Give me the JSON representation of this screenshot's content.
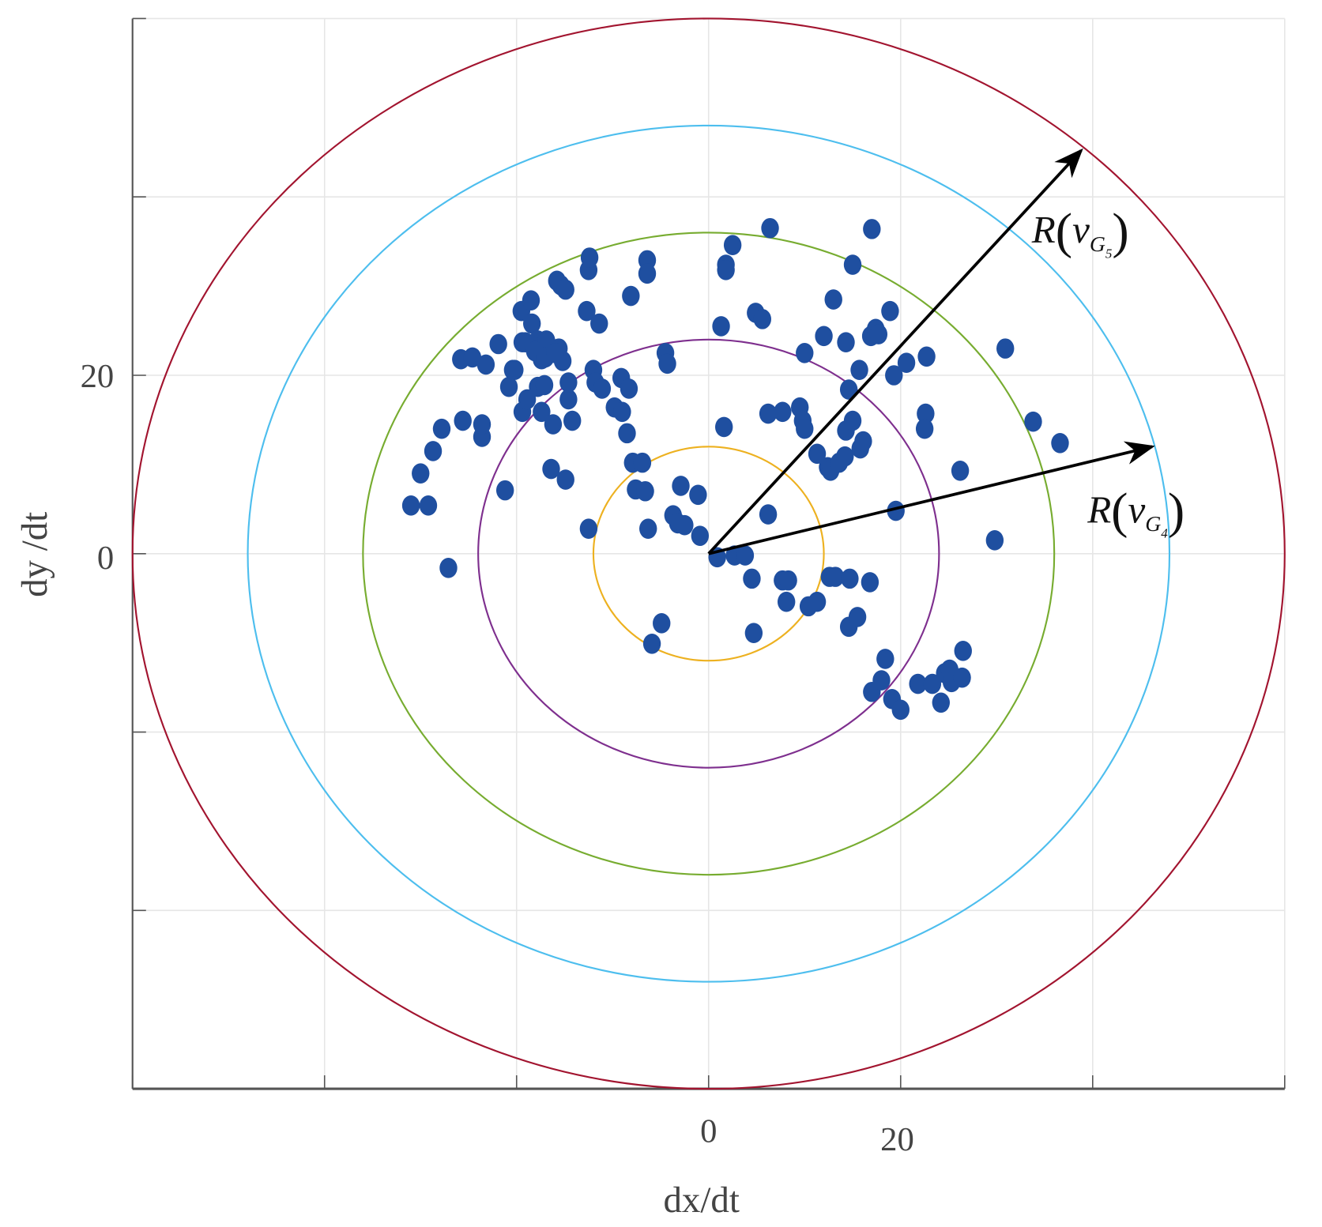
{
  "chart_data": {
    "type": "scatter",
    "title": "",
    "xlabel": "dx/dt",
    "ylabel": "dy /dt",
    "xlim": [
      -60,
      60
    ],
    "ylim": [
      -60,
      60
    ],
    "grid": true,
    "x_gridlines": [
      -60,
      -40,
      -20,
      0,
      20,
      40,
      60
    ],
    "y_gridlines": [
      -60,
      -40,
      -20,
      0,
      20,
      40,
      60
    ],
    "x_tick_labels": [
      {
        "value": 0,
        "label": "0"
      },
      {
        "value": 20,
        "label": "20"
      }
    ],
    "y_tick_labels": [
      {
        "value": 20,
        "label": "20"
      },
      {
        "value": 0,
        "label": "0"
      }
    ],
    "point_color": "#1f4fa0",
    "circles": [
      {
        "radius": 12,
        "color": "#edb120"
      },
      {
        "radius": 24,
        "color": "#7e2f8e"
      },
      {
        "radius": 36,
        "color": "#77ac30"
      },
      {
        "radius": 48,
        "color": "#4dbeee"
      },
      {
        "radius": 60,
        "color": "#a2142f"
      }
    ],
    "annotations": [
      {
        "tip": [
          38.8,
          45.2
        ],
        "label": {
          "R": "R",
          "v": "v",
          "sub": "G",
          "subsub": "5"
        }
      },
      {
        "tip": [
          46.2,
          12.0
        ],
        "label": {
          "R": "R",
          "v": "v",
          "sub": "G",
          "subsub": "4"
        }
      }
    ],
    "points": [
      [
        -31.0,
        5.4
      ],
      [
        -29.2,
        5.4
      ],
      [
        -30.0,
        9.0
      ],
      [
        -28.7,
        11.5
      ],
      [
        -27.8,
        14.0
      ],
      [
        -27.1,
        -1.6
      ],
      [
        -25.6,
        14.9
      ],
      [
        -25.8,
        21.8
      ],
      [
        -24.6,
        22.0
      ],
      [
        -23.6,
        13.1
      ],
      [
        -23.6,
        14.5
      ],
      [
        -23.2,
        21.2
      ],
      [
        -21.9,
        23.5
      ],
      [
        -21.2,
        7.1
      ],
      [
        -20.8,
        18.7
      ],
      [
        -20.2,
        20.6
      ],
      [
        -19.5,
        27.2
      ],
      [
        -19.4,
        15.9
      ],
      [
        -19.4,
        23.7
      ],
      [
        -18.9,
        17.3
      ],
      [
        -18.5,
        28.4
      ],
      [
        -18.4,
        25.8
      ],
      [
        -17.8,
        23.9
      ],
      [
        -17.4,
        21.8
      ],
      [
        -17.8,
        18.7
      ],
      [
        -17.1,
        18.9
      ],
      [
        -17.4,
        15.9
      ],
      [
        -16.9,
        23.9
      ],
      [
        -16.4,
        9.5
      ],
      [
        -16.2,
        14.5
      ],
      [
        -15.8,
        30.6
      ],
      [
        -15.4,
        30.1
      ],
      [
        -14.9,
        29.6
      ],
      [
        -15.6,
        23.0
      ],
      [
        -15.2,
        21.6
      ],
      [
        -14.9,
        8.3
      ],
      [
        -14.6,
        17.3
      ],
      [
        -14.6,
        19.2
      ],
      [
        -14.2,
        14.9
      ],
      [
        -12.7,
        27.2
      ],
      [
        -12.5,
        31.8
      ],
      [
        -12.4,
        33.2
      ],
      [
        -12.5,
        2.8
      ],
      [
        -12.0,
        20.6
      ],
      [
        -11.8,
        19.2
      ],
      [
        -11.4,
        25.8
      ],
      [
        -11.1,
        18.5
      ],
      [
        -9.8,
        16.4
      ],
      [
        -9.1,
        19.7
      ],
      [
        -9.0,
        15.9
      ],
      [
        -8.5,
        13.5
      ],
      [
        -8.3,
        18.5
      ],
      [
        -8.1,
        28.9
      ],
      [
        -7.9,
        10.2
      ],
      [
        -7.6,
        7.2
      ],
      [
        -6.9,
        10.2
      ],
      [
        -6.6,
        7.0
      ],
      [
        -6.4,
        32.9
      ],
      [
        -6.4,
        31.4
      ],
      [
        -6.3,
        2.8
      ],
      [
        -4.9,
        -7.8
      ],
      [
        -5.9,
        -10.1
      ],
      [
        -4.5,
        22.5
      ],
      [
        -4.3,
        21.3
      ],
      [
        -3.7,
        4.3
      ],
      [
        -3.2,
        3.4
      ],
      [
        -2.9,
        7.6
      ],
      [
        -2.5,
        3.2
      ],
      [
        -1.1,
        6.6
      ],
      [
        -0.9,
        2.0
      ],
      [
        0.9,
        -0.4
      ],
      [
        1.6,
        14.2
      ],
      [
        1.8,
        32.4
      ],
      [
        1.8,
        31.8
      ],
      [
        2.5,
        34.6
      ],
      [
        1.3,
        25.5
      ],
      [
        2.7,
        -0.2
      ],
      [
        3.8,
        -0.2
      ],
      [
        4.5,
        -2.8
      ],
      [
        4.7,
        -8.9
      ],
      [
        4.9,
        27.0
      ],
      [
        5.6,
        26.3
      ],
      [
        6.2,
        4.4
      ],
      [
        6.4,
        36.5
      ],
      [
        6.2,
        15.7
      ],
      [
        7.7,
        15.9
      ],
      [
        7.7,
        -3.0
      ],
      [
        8.3,
        -3.0
      ],
      [
        8.1,
        -5.4
      ],
      [
        9.5,
        16.4
      ],
      [
        9.8,
        14.9
      ],
      [
        10.0,
        14.0
      ],
      [
        10.0,
        22.5
      ],
      [
        10.4,
        -5.9
      ],
      [
        11.3,
        -5.4
      ],
      [
        11.3,
        11.2
      ],
      [
        12.0,
        24.4
      ],
      [
        12.4,
        9.7
      ],
      [
        12.7,
        9.3
      ],
      [
        13.0,
        28.5
      ],
      [
        12.6,
        -2.6
      ],
      [
        13.2,
        -2.6
      ],
      [
        13.6,
        10.2
      ],
      [
        14.2,
        10.9
      ],
      [
        14.3,
        23.7
      ],
      [
        14.3,
        13.8
      ],
      [
        14.6,
        18.4
      ],
      [
        14.7,
        -2.8
      ],
      [
        15.0,
        32.4
      ],
      [
        15.0,
        14.9
      ],
      [
        14.6,
        -8.2
      ],
      [
        15.5,
        -7.1
      ],
      [
        15.7,
        20.6
      ],
      [
        15.8,
        11.8
      ],
      [
        16.1,
        12.6
      ],
      [
        16.8,
        -3.2
      ],
      [
        17.0,
        36.4
      ],
      [
        16.9,
        24.4
      ],
      [
        17.4,
        25.2
      ],
      [
        17.7,
        24.6
      ],
      [
        17.0,
        -15.5
      ],
      [
        18.0,
        -14.2
      ],
      [
        18.4,
        -11.8
      ],
      [
        18.9,
        27.2
      ],
      [
        19.3,
        20.0
      ],
      [
        19.5,
        4.8
      ],
      [
        19.1,
        -16.3
      ],
      [
        20.0,
        -17.5
      ],
      [
        20.6,
        21.4
      ],
      [
        21.8,
        -14.6
      ],
      [
        22.7,
        22.1
      ],
      [
        22.6,
        15.7
      ],
      [
        22.5,
        14.0
      ],
      [
        23.3,
        -14.6
      ],
      [
        24.2,
        -16.7
      ],
      [
        24.6,
        -13.4
      ],
      [
        25.1,
        -13.0
      ],
      [
        25.3,
        -14.4
      ],
      [
        26.4,
        -13.9
      ],
      [
        26.5,
        -10.9
      ],
      [
        26.2,
        9.3
      ],
      [
        29.8,
        1.5
      ],
      [
        30.9,
        23.0
      ],
      [
        33.8,
        14.8
      ],
      [
        36.6,
        12.4
      ],
      [
        -20.4,
        20.6
      ],
      [
        -19.1,
        23.7
      ],
      [
        -18.1,
        22.7
      ],
      [
        -17.0,
        22.0
      ],
      [
        -16.0,
        22.5
      ]
    ]
  }
}
